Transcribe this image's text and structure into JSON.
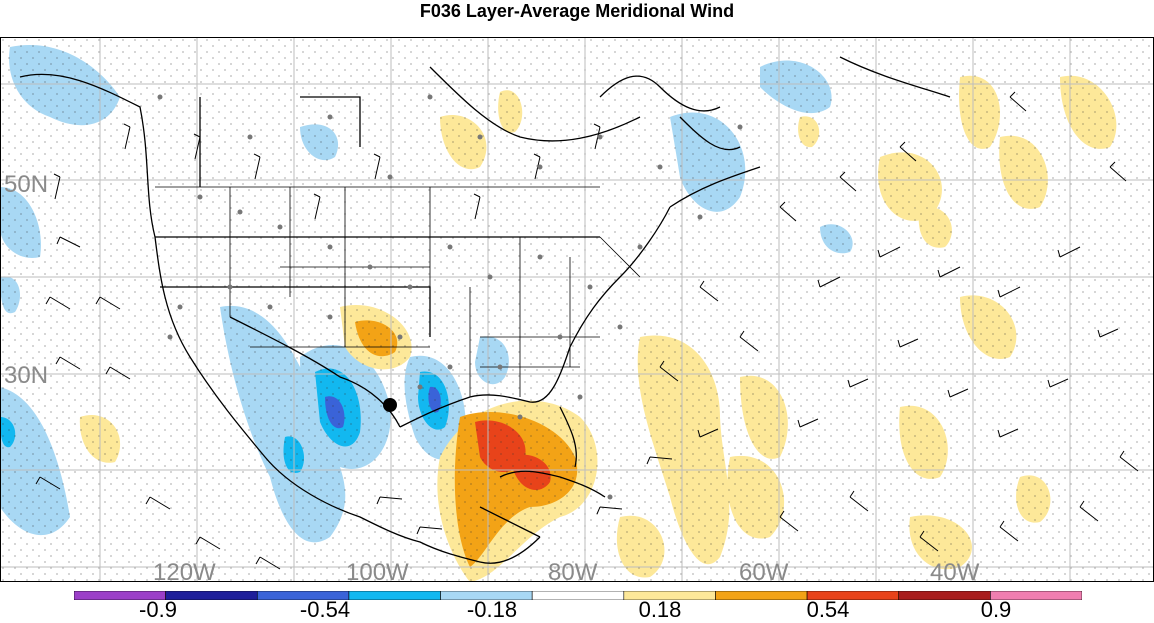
{
  "title": "F036 Layer-Average Meridional Wind",
  "map": {
    "lat_labels": [
      "50N",
      "30N"
    ],
    "lon_labels": [
      "120W",
      "100W",
      "80W",
      "60W",
      "40W"
    ],
    "label_color": "#8a8a8a"
  },
  "colorbar": {
    "labels": [
      "-0.9",
      "-0.54",
      "-0.18",
      "0.18",
      "0.54",
      "0.9"
    ],
    "colors": [
      "#9b3fc8",
      "#1f1f9a",
      "#3a63d8",
      "#12b8f0",
      "#a8d8f4",
      "#ffffff",
      "#fde899",
      "#f3a316",
      "#e8431a",
      "#a81c1c",
      "#f07eb0"
    ]
  }
}
